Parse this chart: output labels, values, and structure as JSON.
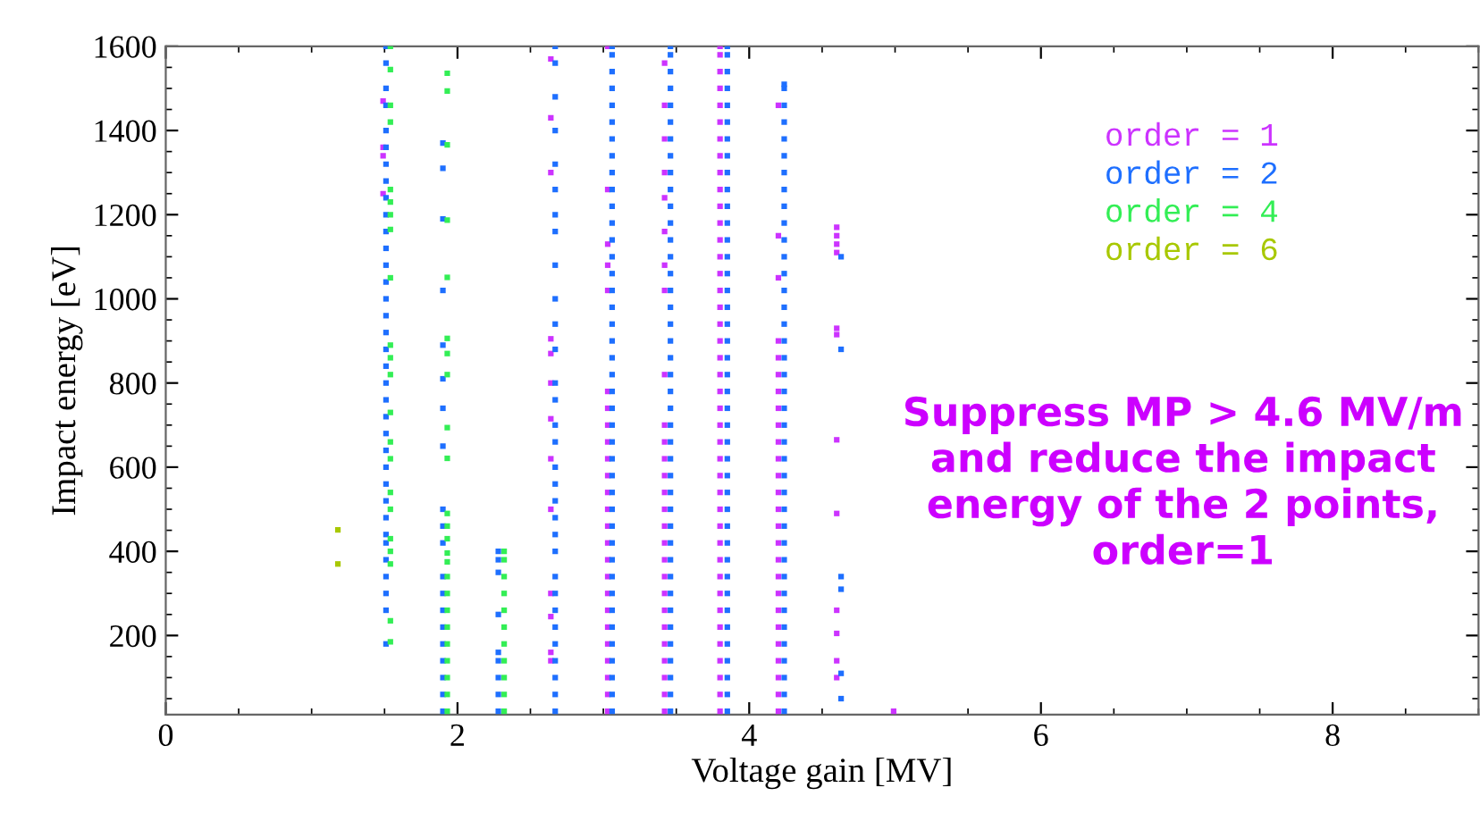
{
  "chart_data": {
    "type": "scatter",
    "xlabel": "Voltage gain [MV]",
    "ylabel": "Impact energy [eV]",
    "xlim": [
      0,
      9
    ],
    "ylim": [
      12,
      1600
    ],
    "xticks": [
      0,
      2,
      4,
      6,
      8
    ],
    "yticks": [
      200,
      400,
      600,
      800,
      1000,
      1200,
      1400,
      1600
    ],
    "marker": "square",
    "grid": false,
    "legend": "top right",
    "annotations": [
      "Suppress MP > 4.6 MV/m\nand reduce the impact\nenergy of the 2 points,\norder=1"
    ],
    "series": [
      {
        "name": "order = 1",
        "color": "#cc33ff",
        "x": [
          1.49,
          1.49,
          1.49,
          1.49,
          2.64,
          2.64,
          2.64,
          2.64,
          2.64,
          2.64,
          2.64,
          2.64,
          2.64,
          2.64,
          2.64,
          2.64,
          2.64,
          3.03,
          3.03,
          3.03,
          3.03,
          3.03,
          3.03,
          3.03,
          3.03,
          3.03,
          3.03,
          3.03,
          3.03,
          3.03,
          3.03,
          3.03,
          3.03,
          3.03,
          3.03,
          3.03,
          3.03,
          3.03,
          3.03,
          3.03,
          3.03,
          3.03,
          3.42,
          3.42,
          3.42,
          3.42,
          3.42,
          3.42,
          3.42,
          3.42,
          3.42,
          3.42,
          3.42,
          3.42,
          3.42,
          3.42,
          3.42,
          3.42,
          3.42,
          3.42,
          3.42,
          3.42,
          3.42,
          3.42,
          3.42,
          3.42,
          3.42,
          3.42,
          3.42,
          3.8,
          3.8,
          3.8,
          3.8,
          3.8,
          3.8,
          3.8,
          3.8,
          3.8,
          3.8,
          3.8,
          3.8,
          3.8,
          3.8,
          3.8,
          3.8,
          3.8,
          3.8,
          3.8,
          3.8,
          3.8,
          3.8,
          3.8,
          3.8,
          3.8,
          3.8,
          3.8,
          3.8,
          3.8,
          3.8,
          3.8,
          3.8,
          3.8,
          3.8,
          3.8,
          3.8,
          3.8,
          3.8,
          3.8,
          3.8,
          3.8,
          4.2,
          4.2,
          4.2,
          4.2,
          4.2,
          4.2,
          4.2,
          4.2,
          4.2,
          4.2,
          4.2,
          4.2,
          4.2,
          4.2,
          4.2,
          4.2,
          4.2,
          4.2,
          4.2,
          4.2,
          4.2,
          4.2,
          4.2,
          4.2,
          4.2,
          4.2,
          4.6,
          4.6,
          4.6,
          4.6,
          4.6,
          4.6,
          4.6,
          4.6,
          4.6,
          4.6,
          4.6,
          4.6,
          4.99
        ],
        "values": [
          1470,
          1360,
          1340,
          1250,
          1570,
          1430,
          1300,
          905,
          870,
          800,
          715,
          620,
          500,
          300,
          245,
          160,
          140,
          20,
          60,
          100,
          140,
          180,
          220,
          260,
          300,
          340,
          380,
          420,
          460,
          500,
          540,
          580,
          620,
          660,
          700,
          740,
          780,
          1020,
          1080,
          1130,
          1260,
          1600,
          20,
          60,
          100,
          140,
          180,
          220,
          260,
          300,
          340,
          380,
          420,
          460,
          500,
          540,
          580,
          620,
          660,
          700,
          820,
          1020,
          1080,
          1160,
          1240,
          1300,
          1380,
          1460,
          1560,
          20,
          60,
          100,
          140,
          180,
          220,
          260,
          300,
          340,
          380,
          420,
          460,
          500,
          540,
          580,
          620,
          660,
          700,
          740,
          780,
          820,
          860,
          900,
          940,
          980,
          1020,
          1060,
          1100,
          1140,
          1180,
          1220,
          1260,
          1300,
          1340,
          1380,
          1420,
          1460,
          1500,
          1540,
          1580,
          1600,
          20,
          60,
          100,
          140,
          180,
          220,
          260,
          300,
          340,
          380,
          420,
          460,
          500,
          540,
          580,
          620,
          660,
          700,
          740,
          780,
          820,
          860,
          900,
          1050,
          1150,
          1460,
          1170,
          1150,
          1130,
          1110,
          930,
          915,
          665,
          490,
          260,
          205,
          140,
          100,
          20
        ]
      },
      {
        "name": "order = 2",
        "color": "#1e6fff",
        "x": [
          1.51,
          1.51,
          1.51,
          1.51,
          1.51,
          1.51,
          1.51,
          1.51,
          1.51,
          1.51,
          1.51,
          1.51,
          1.51,
          1.51,
          1.51,
          1.51,
          1.51,
          1.51,
          1.51,
          1.51,
          1.51,
          1.51,
          1.51,
          1.51,
          1.51,
          1.51,
          1.51,
          1.51,
          1.51,
          1.51,
          1.51,
          1.51,
          1.51,
          1.51,
          1.51,
          1.9,
          1.9,
          1.9,
          1.9,
          1.9,
          1.9,
          1.9,
          1.9,
          1.9,
          1.9,
          1.9,
          1.9,
          1.9,
          1.9,
          1.9,
          1.9,
          1.9,
          1.9,
          1.9,
          1.9,
          2.28,
          2.28,
          2.28,
          2.28,
          2.28,
          2.28,
          2.28,
          2.28,
          2.28,
          2.67,
          2.67,
          2.67,
          2.67,
          2.67,
          2.67,
          2.67,
          2.67,
          2.67,
          2.67,
          2.67,
          2.67,
          2.67,
          2.67,
          2.67,
          2.67,
          2.67,
          2.67,
          2.67,
          2.67,
          2.67,
          2.67,
          2.67,
          2.67,
          2.67,
          2.67,
          2.67,
          2.67,
          2.67,
          2.67,
          2.67,
          3.06,
          3.06,
          3.06,
          3.06,
          3.06,
          3.06,
          3.06,
          3.06,
          3.06,
          3.06,
          3.06,
          3.06,
          3.06,
          3.06,
          3.06,
          3.06,
          3.06,
          3.06,
          3.06,
          3.06,
          3.06,
          3.06,
          3.06,
          3.06,
          3.06,
          3.06,
          3.06,
          3.06,
          3.06,
          3.06,
          3.06,
          3.06,
          3.06,
          3.06,
          3.06,
          3.06,
          3.06,
          3.06,
          3.06,
          3.06,
          3.06,
          3.46,
          3.46,
          3.46,
          3.46,
          3.46,
          3.46,
          3.46,
          3.46,
          3.46,
          3.46,
          3.46,
          3.46,
          3.46,
          3.46,
          3.46,
          3.46,
          3.46,
          3.46,
          3.46,
          3.46,
          3.46,
          3.46,
          3.46,
          3.46,
          3.46,
          3.46,
          3.46,
          3.46,
          3.46,
          3.46,
          3.46,
          3.46,
          3.46,
          3.46,
          3.46,
          3.46,
          3.46,
          3.46,
          3.46,
          3.46,
          3.46,
          3.85,
          3.85,
          3.85,
          3.85,
          3.85,
          3.85,
          3.85,
          3.85,
          3.85,
          3.85,
          3.85,
          3.85,
          3.85,
          3.85,
          3.85,
          3.85,
          3.85,
          3.85,
          3.85,
          3.85,
          3.85,
          3.85,
          3.85,
          3.85,
          3.85,
          3.85,
          3.85,
          3.85,
          3.85,
          3.85,
          3.85,
          3.85,
          3.85,
          3.85,
          3.85,
          3.85,
          3.85,
          3.85,
          3.85,
          3.85,
          3.85,
          4.24,
          4.24,
          4.24,
          4.24,
          4.24,
          4.24,
          4.24,
          4.24,
          4.24,
          4.24,
          4.24,
          4.24,
          4.24,
          4.24,
          4.24,
          4.24,
          4.24,
          4.24,
          4.24,
          4.24,
          4.24,
          4.24,
          4.24,
          4.24,
          4.24,
          4.24,
          4.24,
          4.24,
          4.24,
          4.24,
          4.24,
          4.24,
          4.24,
          4.24,
          4.24,
          4.24,
          4.24,
          4.24,
          4.24,
          4.63,
          4.63,
          4.63,
          4.63,
          4.63,
          4.63
        ],
        "values": [
          180,
          260,
          300,
          340,
          380,
          420,
          440,
          480,
          520,
          560,
          600,
          640,
          680,
          720,
          760,
          800,
          840,
          880,
          920,
          960,
          1000,
          1040,
          1080,
          1120,
          1160,
          1200,
          1240,
          1280,
          1320,
          1360,
          1400,
          1460,
          1500,
          1560,
          1600,
          20,
          60,
          100,
          140,
          180,
          220,
          260,
          300,
          340,
          420,
          460,
          500,
          650,
          740,
          810,
          890,
          1020,
          1190,
          1310,
          1370,
          20,
          60,
          100,
          140,
          160,
          250,
          350,
          380,
          400,
          20,
          60,
          100,
          140,
          180,
          220,
          260,
          300,
          340,
          400,
          440,
          480,
          520,
          560,
          600,
          660,
          700,
          760,
          800,
          880,
          940,
          1000,
          1080,
          1160,
          1200,
          1260,
          1320,
          1400,
          1480,
          1560,
          1600,
          20,
          60,
          100,
          140,
          180,
          220,
          260,
          300,
          340,
          380,
          420,
          460,
          500,
          540,
          580,
          620,
          660,
          700,
          740,
          780,
          820,
          860,
          900,
          940,
          980,
          1020,
          1060,
          1100,
          1140,
          1180,
          1220,
          1260,
          1300,
          1340,
          1380,
          1420,
          1460,
          1500,
          1540,
          1580,
          1600,
          20,
          60,
          100,
          140,
          180,
          220,
          260,
          300,
          340,
          380,
          420,
          460,
          500,
          540,
          580,
          620,
          660,
          700,
          740,
          780,
          820,
          860,
          900,
          940,
          980,
          1020,
          1060,
          1100,
          1140,
          1180,
          1220,
          1260,
          1300,
          1340,
          1380,
          1420,
          1460,
          1500,
          1540,
          1580,
          1600,
          20,
          60,
          100,
          140,
          180,
          220,
          260,
          300,
          340,
          380,
          420,
          460,
          500,
          540,
          580,
          620,
          660,
          700,
          740,
          780,
          820,
          860,
          900,
          940,
          980,
          1020,
          1060,
          1100,
          1140,
          1180,
          1220,
          1260,
          1300,
          1340,
          1380,
          1420,
          1460,
          1500,
          1540,
          1580,
          1600,
          20,
          60,
          100,
          140,
          180,
          220,
          260,
          300,
          340,
          380,
          420,
          460,
          500,
          540,
          580,
          620,
          660,
          700,
          740,
          780,
          820,
          860,
          900,
          940,
          980,
          1020,
          1060,
          1100,
          1140,
          1180,
          1220,
          1260,
          1300,
          1340,
          1380,
          1420,
          1460,
          1500,
          1510,
          1100,
          880,
          340,
          310,
          110,
          50
        ]
      },
      {
        "name": "order = 4",
        "color": "#33ee55",
        "x": [
          1.54,
          1.54,
          1.54,
          1.54,
          1.54,
          1.54,
          1.54,
          1.54,
          1.54,
          1.54,
          1.54,
          1.54,
          1.54,
          1.54,
          1.54,
          1.54,
          1.54,
          1.54,
          1.54,
          1.54,
          1.54,
          1.54,
          1.93,
          1.93,
          1.93,
          1.93,
          1.93,
          1.93,
          1.93,
          1.93,
          1.93,
          1.93,
          1.93,
          1.93,
          1.93,
          1.93,
          1.93,
          1.93,
          1.93,
          1.93,
          1.93,
          1.93,
          1.93,
          1.93,
          1.93,
          1.93,
          2.32,
          2.32,
          2.32,
          2.32,
          2.32,
          2.32,
          2.32,
          2.32,
          2.32,
          2.32,
          2.32
        ],
        "values": [
          1600,
          1545,
          1460,
          1420,
          1260,
          1230,
          1200,
          1165,
          1050,
          890,
          860,
          820,
          730,
          660,
          620,
          540,
          500,
          430,
          400,
          370,
          235,
          185,
          1536,
          1494,
          1366,
          1187,
          1051,
          906,
          870,
          820,
          694,
          621,
          490,
          460,
          430,
          396,
          375,
          340,
          300,
          260,
          220,
          180,
          140,
          100,
          60,
          20,
          20,
          60,
          100,
          140,
          180,
          220,
          260,
          300,
          340,
          380,
          400
        ]
      },
      {
        "name": "order = 6",
        "color": "#a8c800",
        "x": [
          1.18,
          1.18
        ],
        "values": [
          451,
          370
        ]
      }
    ]
  }
}
